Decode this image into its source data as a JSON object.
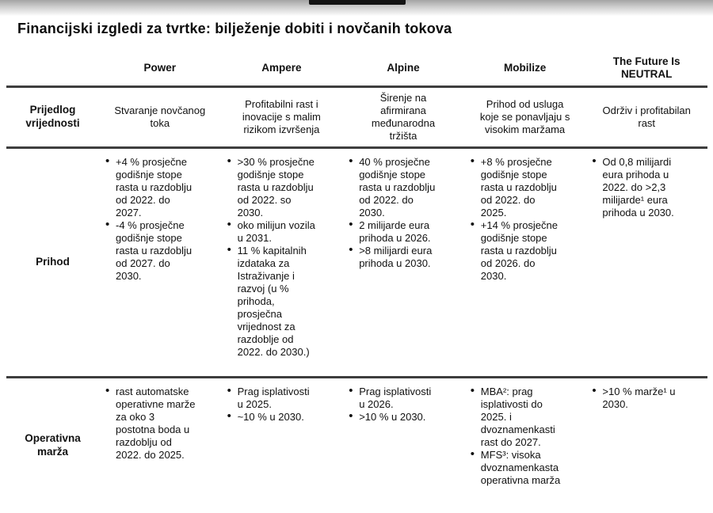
{
  "title": "Financijski izgledi za tvrtke: bilježenje dobiti i novčanih tokova",
  "colors": {
    "rule_line": "#3e3e3e",
    "top_band_gray": "#a4a4a4",
    "top_tab_black": "#141414",
    "text": "#111111"
  },
  "table": {
    "companies": [
      "Power",
      "Ampere",
      "Alpine",
      "Mobilize",
      "The Future Is NEUTRAL"
    ],
    "value_row": {
      "label": "Prijedlog vrijednosti",
      "cells": [
        "Stvaranje novčanog toka",
        "Profitabilni rast i inovacije s malim rizikom izvršenja",
        "Širenje na afirmirana međunarodna tržišta",
        "Prihod od usluga koje se ponavljaju s visokim maržama",
        "Održiv i profitabilan rast"
      ]
    },
    "prihod_row": {
      "label": "Prihod",
      "cells": [
        [
          "+4 % prosječne godišnje stope rasta u razdoblju od 2022. do 2027.",
          "-4 % prosječne godišnje stope rasta u razdoblju od 2027. do 2030."
        ],
        [
          ">30 % prosječne godišnje stope rasta u razdoblju od 2022. so 2030.",
          "oko milijun vozila u 2031.",
          "11 % kapitalnih izdataka za Istraživanje i razvoj (u % prihoda, prosječna vrijednost za razdoblje od 2022. do 2030.)"
        ],
        [
          "40 % prosječne godišnje stope rasta u razdoblju od 2022. do 2030.",
          "2 milijarde eura prihoda u 2026.",
          ">8 milijardi eura prihoda u 2030."
        ],
        [
          "+8 % prosječne godišnje stope rasta u razdoblju od 2022. do 2025.",
          "+14 % prosječne godišnje stope rasta u razdoblju od 2026. do 2030."
        ],
        [
          "Od 0,8 milijardi eura prihoda u 2022. do >2,3 milijarde¹ eura prihoda u 2030."
        ]
      ]
    },
    "marza_row": {
      "label": "Operativna marža",
      "cells": [
        [
          "rast automatske operativne marže za oko 3 postotna boda u razdoblju od 2022. do 2025."
        ],
        [
          "Prag isplativosti u 2025.",
          "~10 % u 2030."
        ],
        [
          "Prag isplativosti u 2026.",
          ">10 % u 2030."
        ],
        [
          "MBA²: prag isplativosti do 2025. i dvoznamenkasti rast do 2027.",
          "MFS³: visoka dvoznamenkasta operativna marža"
        ],
        [
          ">10 % marže¹ u 2030."
        ]
      ]
    }
  }
}
